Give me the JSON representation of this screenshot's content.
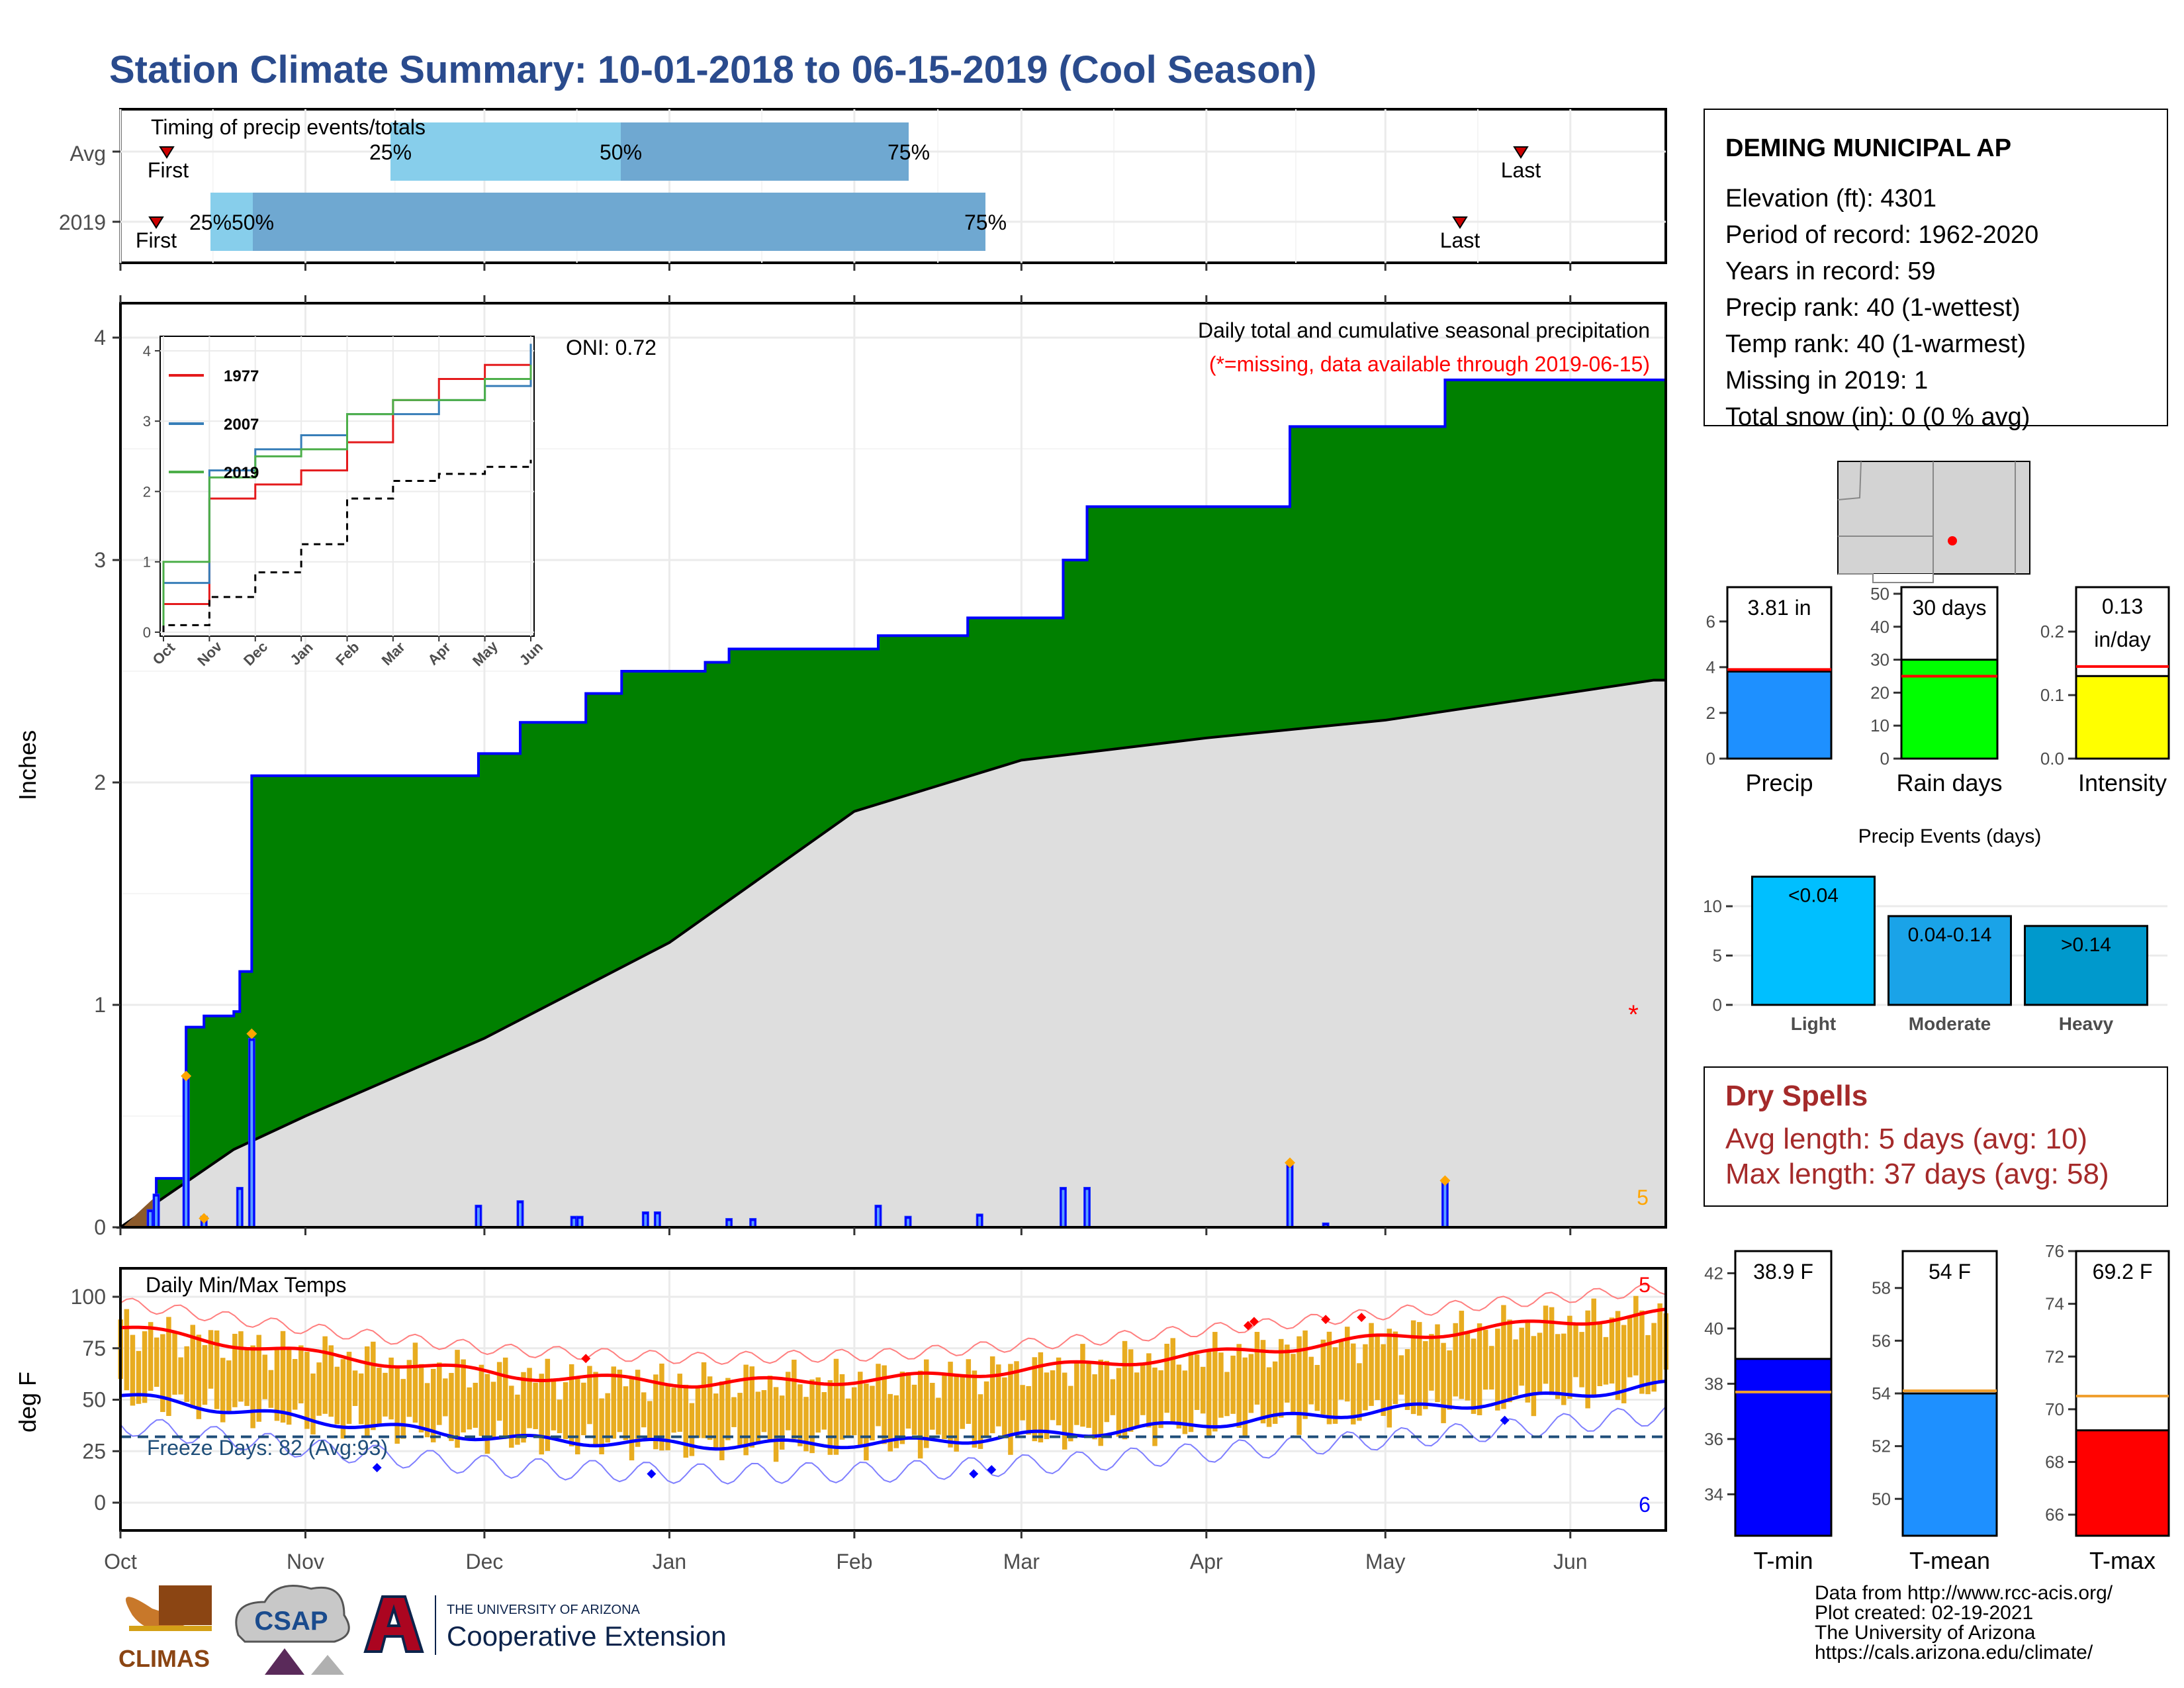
{
  "title": "Station Climate Summary: 10-01-2018 to 06-15-2019 (Cool Season)",
  "timing": {
    "heading": "Timing of precip events/totals",
    "rows": [
      {
        "label": "Avg",
        "first_label": "First",
        "last_label": "Last",
        "q25_label": "25%",
        "q50_label": "50%",
        "q75_label": "75%"
      },
      {
        "label": "2019",
        "first_label": "First",
        "last_label": "Last",
        "q25_label": "25%",
        "q50_label": "50%",
        "q75_label": "75%"
      }
    ]
  },
  "station": {
    "name": "DEMING MUNICIPAL AP",
    "lines": [
      "Elevation (ft): 4301",
      "Period of record: 1962-2020",
      "Years in record: 59",
      "Precip rank: 40 (1-wettest)",
      "Temp rank: 40 (1-warmest)",
      "Missing in 2019: 1",
      "Total snow (in): 0 (0 % avg)"
    ]
  },
  "precip_panel": {
    "ylabel": "Inches",
    "legend_title": "Daily total and cumulative seasonal precipitation",
    "legend_note": "(*=missing, data available through 2019-06-15)",
    "oni": "ONI: 0.72",
    "missing_marker": "*",
    "count_label": "5",
    "month_ticks": [
      "Oct",
      "Nov",
      "Dec",
      "Jan",
      "Feb",
      "Mar",
      "Apr",
      "May",
      "Jun"
    ],
    "y_ticks": [
      "0",
      "1",
      "2",
      "3",
      "4"
    ]
  },
  "inset": {
    "series": [
      {
        "name": "1977",
        "color": "#e41a1c"
      },
      {
        "name": "2007",
        "color": "#377eb8"
      },
      {
        "name": "2019",
        "color": "#4daf4a"
      }
    ],
    "y_ticks": [
      "0",
      "1",
      "2",
      "3",
      "4"
    ],
    "x_ticks": [
      "Oct",
      "Nov",
      "Dec",
      "Jan",
      "Feb",
      "Mar",
      "Apr",
      "May",
      "Jun"
    ]
  },
  "temp_panel": {
    "ylabel": "deg F",
    "title": "Daily Min/Max Temps",
    "freeze_label": "Freeze Days: 82 (Avg:93)",
    "max_count": "5",
    "min_count": "6",
    "y_ticks": [
      "0",
      "25",
      "50",
      "75",
      "100"
    ],
    "month_ticks": [
      "Oct",
      "Nov",
      "Dec",
      "Jan",
      "Feb",
      "Mar",
      "Apr",
      "May",
      "Jun"
    ]
  },
  "stat_bars": [
    {
      "name": "Precip",
      "value": 3.81,
      "avg": 3.9,
      "max": 7.5,
      "value_label": "3.81 in",
      "color": "#1e90ff",
      "ticks": [
        "0",
        "2",
        "4",
        "6"
      ]
    },
    {
      "name": "Rain days",
      "value": 30,
      "avg": 25,
      "max": 52,
      "value_label": "30 days",
      "color": "#00ff00",
      "ticks": [
        "0",
        "10",
        "20",
        "30",
        "40",
        "50"
      ]
    },
    {
      "name": "Intensity",
      "value": 0.13,
      "avg": 0.145,
      "max": 0.27,
      "value_label": "0.13 in/day",
      "color": "#ffff00",
      "ticks": [
        "0.0",
        "0.1",
        "0.2"
      ]
    }
  ],
  "events": {
    "title": "Precip Events (days)",
    "bars": [
      {
        "category": "Light",
        "value": 13,
        "label": "<0.04",
        "color": "#00bfff"
      },
      {
        "category": "Moderate",
        "value": 9,
        "label": "0.04-0.14",
        "color": "#1aa3e8"
      },
      {
        "category": "Heavy",
        "value": 8,
        "label": ">0.14",
        "color": "#0099cc"
      }
    ],
    "ticks": [
      "0",
      "5",
      "10"
    ]
  },
  "dry_spells": {
    "title": "Dry Spells",
    "avg_line": "Avg length: 5 days (avg: 10)",
    "max_line": "Max length: 37 days (avg: 58)"
  },
  "temp_bars": [
    {
      "name": "T-min",
      "value": 38.9,
      "avg": 37.7,
      "lo": 32.5,
      "hi": 42.8,
      "value_label": "38.9 F",
      "color": "#0000ff",
      "ticks": [
        "34",
        "36",
        "38",
        "40",
        "42"
      ]
    },
    {
      "name": "T-mean",
      "value": 54.0,
      "avg": 54.1,
      "lo": 48.6,
      "hi": 59.4,
      "value_label": "54 F",
      "color": "#1e90ff",
      "ticks": [
        "50",
        "52",
        "54",
        "56",
        "58"
      ]
    },
    {
      "name": "T-max",
      "value": 69.2,
      "avg": 70.5,
      "lo": 65.2,
      "hi": 76.0,
      "value_label": "69.2 F",
      "color": "#ff0000",
      "ticks": [
        "66",
        "68",
        "70",
        "72",
        "74",
        "76"
      ]
    }
  ],
  "footer": {
    "lines": [
      "Data from http://www.rcc-acis.org/",
      "Plot created: 02-19-2021",
      "The University of Arizona",
      "https://cals.arizona.edu/climate/"
    ],
    "logo_climas": "CLIMAS",
    "logo_csap": "CSAP",
    "ua_small": "THE UNIVERSITY OF ARIZONA",
    "ua_big": "Cooperative Extension"
  },
  "chart_data": [
    {
      "type": "area",
      "title": "Daily total and cumulative seasonal precipitation",
      "ylabel": "Inches",
      "ylim": [
        0,
        4.2
      ],
      "x_range": [
        "2018-10-01",
        "2019-06-15"
      ],
      "cumulative_2019": [
        {
          "date": "2018-10-01",
          "value": 0.0
        },
        {
          "date": "2018-10-06",
          "value": 0.08
        },
        {
          "date": "2018-10-07",
          "value": 0.22
        },
        {
          "date": "2018-10-12",
          "value": 0.9
        },
        {
          "date": "2018-10-15",
          "value": 0.95
        },
        {
          "date": "2018-10-20",
          "value": 0.97
        },
        {
          "date": "2018-10-21",
          "value": 1.15
        },
        {
          "date": "2018-10-23",
          "value": 2.03
        },
        {
          "date": "2018-11-30",
          "value": 2.13
        },
        {
          "date": "2018-12-07",
          "value": 2.27
        },
        {
          "date": "2018-12-16",
          "value": 2.27
        },
        {
          "date": "2018-12-18",
          "value": 2.4
        },
        {
          "date": "2018-12-24",
          "value": 2.5
        },
        {
          "date": "2019-01-07",
          "value": 2.54
        },
        {
          "date": "2019-01-11",
          "value": 2.6
        },
        {
          "date": "2019-02-05",
          "value": 2.66
        },
        {
          "date": "2019-02-20",
          "value": 2.74
        },
        {
          "date": "2019-03-08",
          "value": 3.0
        },
        {
          "date": "2019-03-12",
          "value": 3.24
        },
        {
          "date": "2019-04-15",
          "value": 3.6
        },
        {
          "date": "2019-05-11",
          "value": 3.81
        },
        {
          "date": "2019-06-15",
          "value": 3.81
        }
      ],
      "cumulative_avg": [
        {
          "date": "2018-10-01",
          "value": 0.0
        },
        {
          "date": "2018-10-20",
          "value": 0.35
        },
        {
          "date": "2018-11-01",
          "value": 0.5
        },
        {
          "date": "2018-12-01",
          "value": 0.85
        },
        {
          "date": "2019-01-01",
          "value": 1.28
        },
        {
          "date": "2019-02-01",
          "value": 1.87
        },
        {
          "date": "2019-03-01",
          "value": 2.1
        },
        {
          "date": "2019-04-01",
          "value": 2.2
        },
        {
          "date": "2019-05-01",
          "value": 2.28
        },
        {
          "date": "2019-06-15",
          "value": 2.46
        }
      ],
      "daily_events": [
        {
          "date": "2018-10-06",
          "value": 0.08
        },
        {
          "date": "2018-10-07",
          "value": 0.15
        },
        {
          "date": "2018-10-12",
          "value": 0.68
        },
        {
          "date": "2018-10-15",
          "value": 0.05
        },
        {
          "date": "2018-10-21",
          "value": 0.18
        },
        {
          "date": "2018-10-23",
          "value": 0.85
        },
        {
          "date": "2018-11-30",
          "value": 0.1
        },
        {
          "date": "2018-12-07",
          "value": 0.12
        },
        {
          "date": "2018-12-16",
          "value": 0.05
        },
        {
          "date": "2018-12-17",
          "value": 0.05
        },
        {
          "date": "2018-12-28",
          "value": 0.07
        },
        {
          "date": "2018-12-30",
          "value": 0.07
        },
        {
          "date": "2019-01-11",
          "value": 0.04
        },
        {
          "date": "2019-01-15",
          "value": 0.04
        },
        {
          "date": "2019-02-05",
          "value": 0.1
        },
        {
          "date": "2019-02-10",
          "value": 0.05
        },
        {
          "date": "2019-02-22",
          "value": 0.06
        },
        {
          "date": "2019-03-08",
          "value": 0.18
        },
        {
          "date": "2019-03-12",
          "value": 0.18
        },
        {
          "date": "2019-04-15",
          "value": 0.28
        },
        {
          "date": "2019-04-21",
          "value": 0.02
        },
        {
          "date": "2019-05-11",
          "value": 0.21
        }
      ]
    },
    {
      "type": "line",
      "title": "",
      "x": [
        "Oct",
        "Nov",
        "Dec",
        "Jan",
        "Feb",
        "Mar",
        "Apr",
        "May",
        "Jun"
      ],
      "ylim": [
        0,
        4
      ],
      "series": [
        {
          "name": "1977",
          "values": [
            0.4,
            1.9,
            2.1,
            2.3,
            2.7,
            3.3,
            3.6,
            3.8,
            3.9
          ]
        },
        {
          "name": "2007",
          "values": [
            0.7,
            2.3,
            2.6,
            2.8,
            3.1,
            3.1,
            3.3,
            3.5,
            4.1
          ]
        },
        {
          "name": "2019",
          "values": [
            1.0,
            2.2,
            2.5,
            2.6,
            3.1,
            3.3,
            3.3,
            3.6,
            3.8
          ]
        },
        {
          "name": "",
          "values": [
            0.1,
            0.5,
            0.85,
            1.25,
            1.9,
            2.15,
            2.25,
            2.35,
            2.45
          ]
        }
      ]
    },
    {
      "type": "line",
      "title": "Daily Min/Max Temps",
      "ylabel": "deg F",
      "ylim": [
        -12,
        108
      ],
      "x": [
        "Oct",
        "Nov",
        "Dec",
        "Jan",
        "Feb",
        "Mar",
        "Apr",
        "May",
        "Jun"
      ],
      "series": [
        {
          "name": "",
          "values": [
            85,
            72,
            62,
            58,
            60,
            67,
            75,
            84,
            92
          ]
        },
        {
          "name": "",
          "values": [
            52,
            40,
            31,
            28,
            29,
            34,
            41,
            48,
            57
          ]
        }
      ],
      "freeze_line": 32
    },
    {
      "type": "bar",
      "categories": [
        "Light",
        "Moderate",
        "Heavy"
      ],
      "values": [
        13,
        9,
        8
      ],
      "title": "Precip Events (days)"
    }
  ]
}
